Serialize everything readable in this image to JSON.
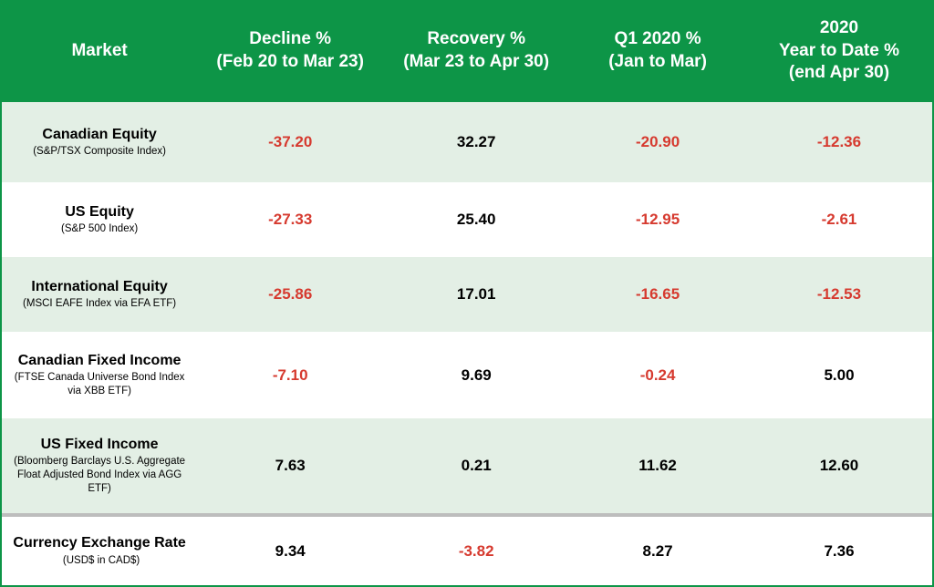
{
  "type": "table",
  "colors": {
    "header_bg": "#0d9547",
    "header_text": "#ffffff",
    "row_alt_bg": "#e3efe5",
    "row_plain_bg": "#ffffff",
    "negative": "#d63a2f",
    "positive": "#000000",
    "border": "#0d9547",
    "separator": "#bdbdbd"
  },
  "column_widths_pct": [
    21,
    20,
    20,
    19,
    20
  ],
  "header_fontsize_pt": 14,
  "market_name_fontsize_pt": 12,
  "market_desc_fontsize_pt": 8.5,
  "data_fontsize_pt": 13,
  "columns": [
    {
      "title": "Market",
      "sub": ""
    },
    {
      "title": "Decline %",
      "sub": "(Feb 20 to Mar 23)"
    },
    {
      "title": "Recovery %",
      "sub": "(Mar 23 to Apr 30)"
    },
    {
      "title": "Q1 2020 %",
      "sub": "(Jan to Mar)"
    },
    {
      "title": "2020",
      "sub": "Year to Date %",
      "sub2": "(end Apr 30)"
    }
  ],
  "rows": [
    {
      "name": "Canadian Equity",
      "desc": "(S&P/TSX Composite Index)",
      "alt": true,
      "values": [
        {
          "v": "-37.20",
          "neg": true
        },
        {
          "v": "32.27",
          "neg": false
        },
        {
          "v": "-20.90",
          "neg": true
        },
        {
          "v": "-12.36",
          "neg": true
        }
      ]
    },
    {
      "name": "US Equity",
      "desc": "(S&P 500 Index)",
      "alt": false,
      "values": [
        {
          "v": "-27.33",
          "neg": true
        },
        {
          "v": "25.40",
          "neg": false
        },
        {
          "v": "-12.95",
          "neg": true
        },
        {
          "v": "-2.61",
          "neg": true
        }
      ]
    },
    {
      "name": "International Equity",
      "desc": "(MSCI EAFE Index via EFA ETF)",
      "alt": true,
      "values": [
        {
          "v": "-25.86",
          "neg": true
        },
        {
          "v": "17.01",
          "neg": false
        },
        {
          "v": "-16.65",
          "neg": true
        },
        {
          "v": "-12.53",
          "neg": true
        }
      ]
    },
    {
      "name": "Canadian Fixed Income",
      "desc": "(FTSE Canada Universe Bond Index via XBB ETF)",
      "alt": false,
      "values": [
        {
          "v": "-7.10",
          "neg": true
        },
        {
          "v": "9.69",
          "neg": false
        },
        {
          "v": "-0.24",
          "neg": true
        },
        {
          "v": "5.00",
          "neg": false
        }
      ]
    },
    {
      "name": "US Fixed Income",
      "desc": "(Bloomberg Barclays U.S. Aggregate Float Adjusted Bond Index via AGG ETF)",
      "alt": true,
      "values": [
        {
          "v": "7.63",
          "neg": false
        },
        {
          "v": "0.21",
          "neg": false
        },
        {
          "v": "11.62",
          "neg": false
        },
        {
          "v": "12.60",
          "neg": false
        }
      ]
    },
    {
      "name": "Currency Exchange Rate",
      "desc": "(USD$ in CAD$)",
      "alt": false,
      "inline": true,
      "separator_before": true,
      "values": [
        {
          "v": "9.34",
          "neg": false
        },
        {
          "v": "-3.82",
          "neg": true
        },
        {
          "v": "8.27",
          "neg": false
        },
        {
          "v": "7.36",
          "neg": false
        }
      ]
    }
  ]
}
